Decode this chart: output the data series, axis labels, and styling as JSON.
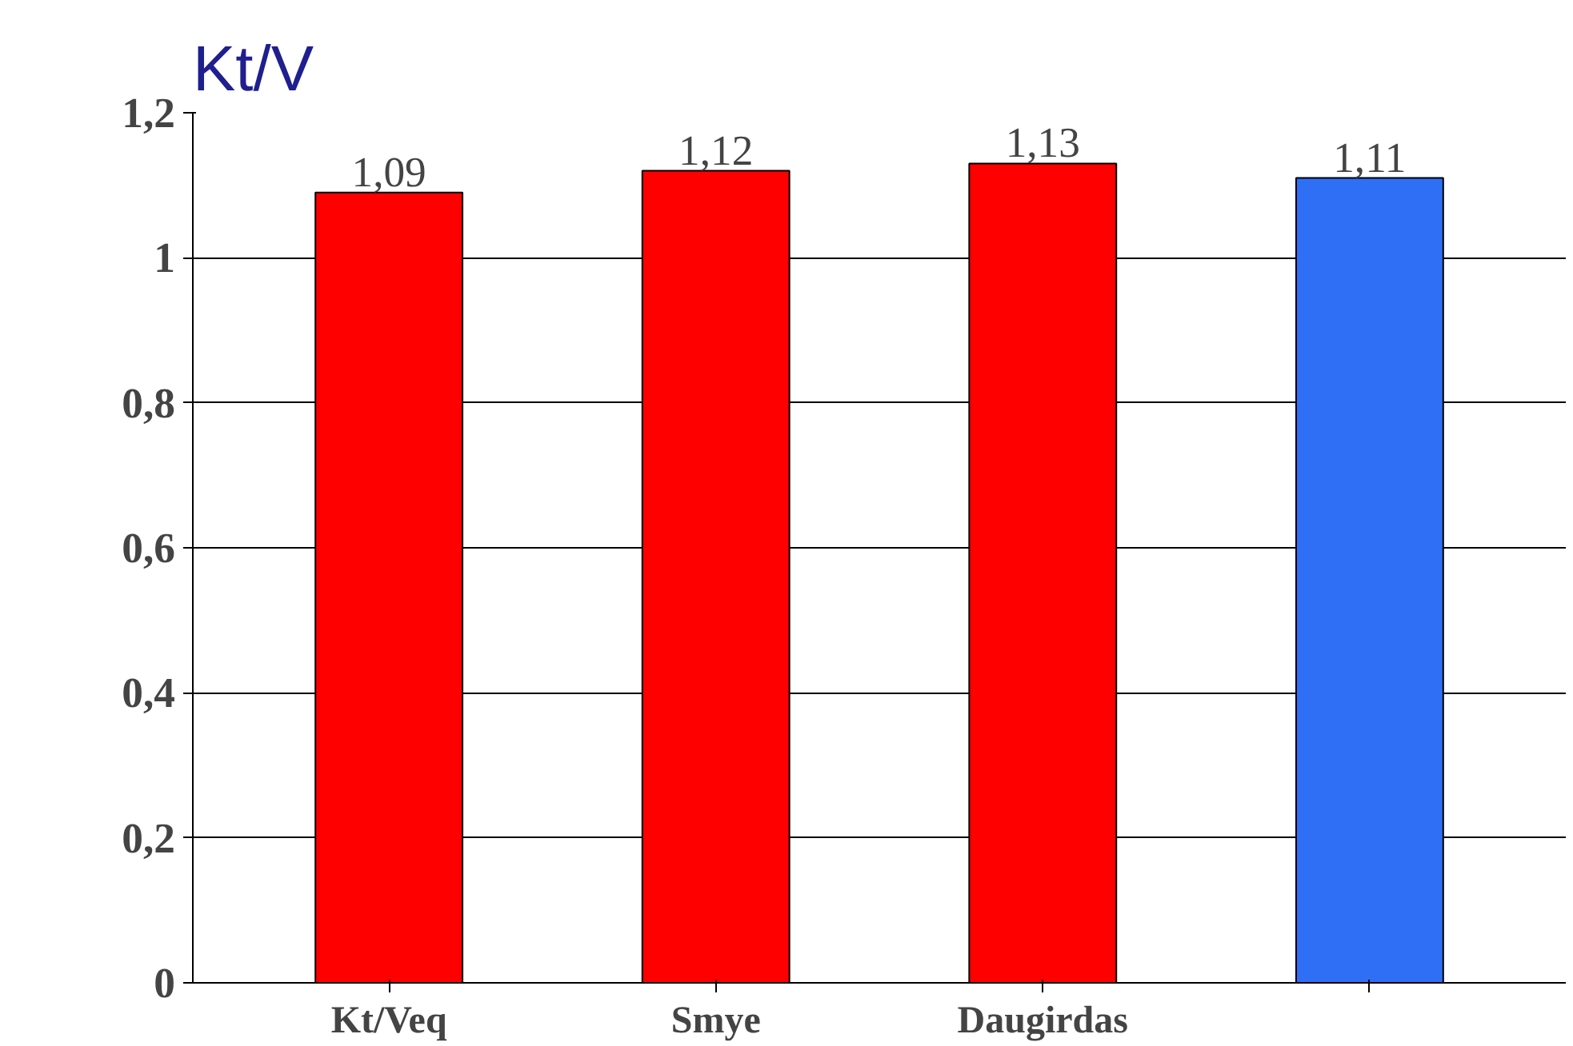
{
  "chart_data": {
    "type": "bar",
    "title": "Kt/V",
    "categories": [
      "Kt/Veq",
      "Smye",
      "Daugirdas",
      null
    ],
    "values": [
      1.09,
      1.12,
      1.13,
      1.11
    ],
    "colors": [
      "#ff0000",
      "#ff0000",
      "#ff0000",
      "#2e6ff5"
    ],
    "value_labels": [
      "1,09",
      "1,12",
      "1,13",
      "1,11"
    ],
    "ylim": [
      0,
      1.2
    ],
    "yticks": [
      0,
      {
        "value": 0.2,
        "label": "0,2"
      },
      {
        "value": 0.4,
        "label": "0,4"
      },
      {
        "value": 0.6,
        "label": "0,6"
      },
      {
        "value": 0.8,
        "label": "0,8"
      },
      1,
      {
        "value": 1.2,
        "label": "1,2"
      }
    ],
    "grid": "y"
  }
}
